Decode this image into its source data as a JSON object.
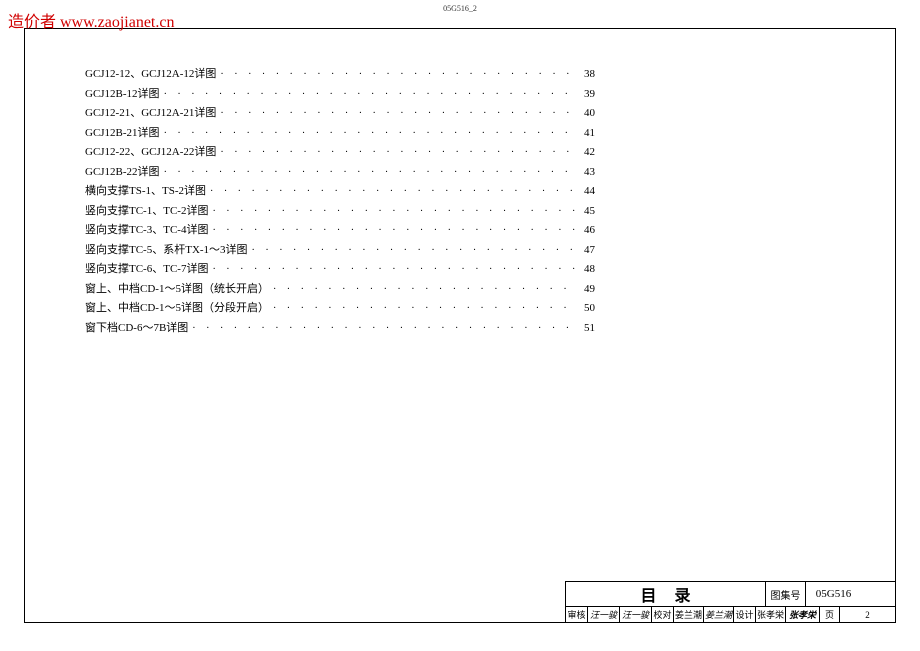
{
  "watermark": "造价者  www.zaojianet.cn",
  "page_header": "05G516_2",
  "toc": {
    "font_size": 11,
    "color": "#000000",
    "entries": [
      {
        "label": "GCJ12-12、GCJ12A-12详图",
        "page": "38"
      },
      {
        "label": "GCJ12B-12详图",
        "page": "39"
      },
      {
        "label": "GCJ12-21、GCJ12A-21详图",
        "page": "40"
      },
      {
        "label": "GCJ12B-21详图",
        "page": "41"
      },
      {
        "label": "GCJ12-22、GCJ12A-22详图",
        "page": "42"
      },
      {
        "label": "GCJ12B-22详图",
        "page": "43"
      },
      {
        "label": "横向支撑TS-1、TS-2详图",
        "page": "44"
      },
      {
        "label": "竖向支撑TC-1、TC-2详图",
        "page": "45"
      },
      {
        "label": "竖向支撑TC-3、TC-4详图",
        "page": "46"
      },
      {
        "label": "竖向支撑TC-5、系杆TX-1～3详图",
        "page": "47"
      },
      {
        "label": "竖向支撑TC-6、TC-7详图",
        "page": "48"
      },
      {
        "label": "窗上、中档CD-1～5详图（统长开启）",
        "page": "49"
      },
      {
        "label": "窗上、中档CD-1～5详图（分段开启）",
        "page": "50"
      },
      {
        "label": "窗下档CD-6～7B详图",
        "page": "51"
      }
    ]
  },
  "title_block": {
    "title": "目录",
    "set_label": "图集号",
    "set_value": "05G516",
    "bottom": {
      "review_label": "审核",
      "review_sig": "汪一骏",
      "review_sig2": "汪一骏",
      "check_label": "校对",
      "check_name": "姜兰潮",
      "check_sig": "姜兰潮",
      "design_label": "设计",
      "design_name": "张孝栄",
      "design_sig": "张孝栄",
      "page_label": "页",
      "page_value": "2"
    }
  },
  "colors": {
    "watermark": "#d00000",
    "border": "#000000",
    "text": "#000000",
    "background": "#ffffff"
  }
}
